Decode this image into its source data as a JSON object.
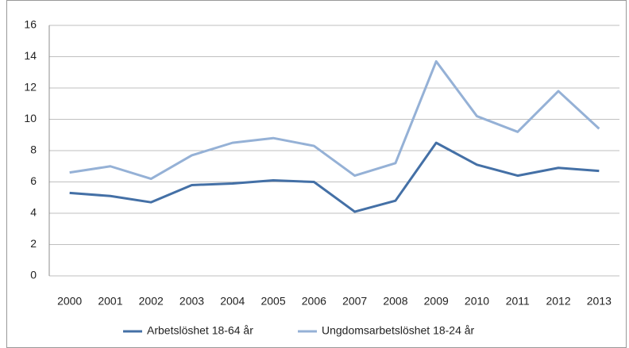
{
  "chart_data": {
    "type": "line",
    "categories": [
      "2000",
      "2001",
      "2002",
      "2003",
      "2004",
      "2005",
      "2006",
      "2007",
      "2008",
      "2009",
      "2010",
      "2011",
      "2012",
      "2013"
    ],
    "series": [
      {
        "name": "Arbetslöshet 18-64 år",
        "color": "#4470a6",
        "values": [
          5.3,
          5.1,
          4.7,
          5.8,
          5.9,
          6.1,
          6.0,
          4.1,
          4.8,
          8.5,
          7.1,
          6.4,
          6.9,
          6.7
        ]
      },
      {
        "name": "Ungdomsarbetslöshet 18-24 år",
        "color": "#95b1d6",
        "values": [
          6.6,
          7.0,
          6.2,
          7.7,
          8.5,
          8.8,
          8.3,
          6.4,
          7.2,
          13.7,
          10.2,
          9.2,
          11.8,
          9.4
        ]
      }
    ],
    "ylim": [
      0,
      16
    ],
    "yticks": [
      0,
      2,
      4,
      6,
      8,
      10,
      12,
      14,
      16
    ],
    "grid": true,
    "legend": "bottom"
  }
}
